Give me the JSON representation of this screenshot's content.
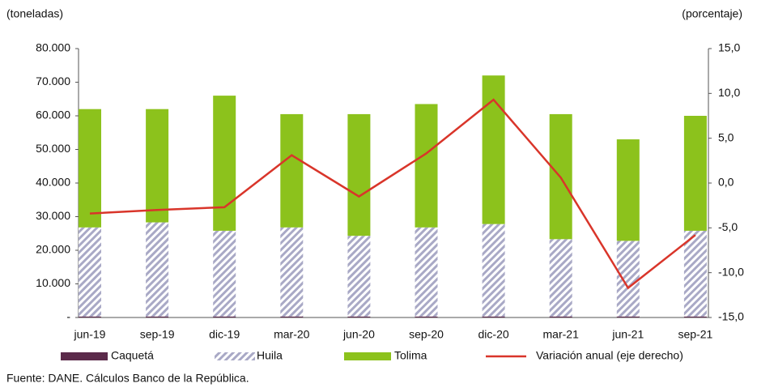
{
  "chart_data": {
    "type": "bar",
    "stacked": true,
    "y_label": "(toneladas)",
    "y2_label": "(porcentaje)",
    "source": "Fuente: DANE. Cálculos Banco de la República.",
    "categories": [
      "jun-19",
      "sep-19",
      "dic-19",
      "mar-20",
      "jun-20",
      "sep-20",
      "dic-20",
      "mar-21",
      "jun-21",
      "sep-21"
    ],
    "series": [
      {
        "name": "Caquetá",
        "color": "#5b2a4a",
        "values": [
          300,
          300,
          300,
          300,
          300,
          300,
          300,
          300,
          300,
          300
        ]
      },
      {
        "name": "Huila",
        "color": "#a9a9c6",
        "pattern": "hatch",
        "values": [
          26500,
          28000,
          25500,
          26500,
          24000,
          26500,
          27500,
          23000,
          22500,
          25500
        ]
      },
      {
        "name": "Tolima",
        "color": "#8cc21c",
        "values": [
          35200,
          33700,
          40200,
          33700,
          36200,
          36700,
          44200,
          37200,
          30200,
          34200
        ]
      },
      {
        "name": "Variación anual (eje derecho)",
        "color": "#d9352a",
        "type": "line",
        "axis": "y2",
        "values": [
          -3.4,
          -3.0,
          -2.7,
          3.1,
          -1.5,
          3.3,
          9.3,
          0.6,
          -11.7,
          -5.8
        ]
      }
    ],
    "ylim": [
      0,
      80000
    ],
    "yticks": [
      {
        "value": 0,
        "label": "-"
      },
      {
        "value": 10000,
        "label": "10.000"
      },
      {
        "value": 20000,
        "label": "20.000"
      },
      {
        "value": 30000,
        "label": "30.000"
      },
      {
        "value": 40000,
        "label": "40.000"
      },
      {
        "value": 50000,
        "label": "50.000"
      },
      {
        "value": 60000,
        "label": "60.000"
      },
      {
        "value": 70000,
        "label": "70.000"
      },
      {
        "value": 80000,
        "label": "80.000"
      }
    ],
    "y2lim": [
      -15,
      15
    ],
    "y2ticks": [
      {
        "value": -15,
        "label": "-15,0"
      },
      {
        "value": -10,
        "label": "-10,0"
      },
      {
        "value": -5,
        "label": "-5,0"
      },
      {
        "value": 0,
        "label": "0,0"
      },
      {
        "value": 5,
        "label": "5,0"
      },
      {
        "value": 10,
        "label": "10,0"
      },
      {
        "value": 15,
        "label": "15,0"
      }
    ]
  }
}
